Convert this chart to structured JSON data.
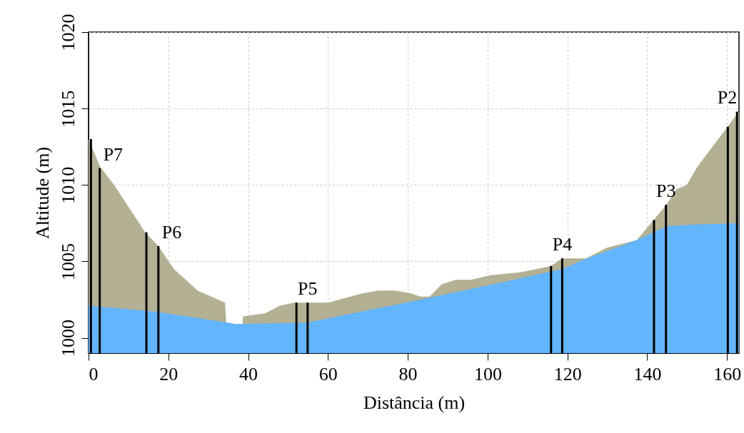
{
  "chart_data": {
    "type": "area",
    "xlabel": "Distância (m)",
    "ylabel": "Altitude (m)",
    "xlim": [
      0,
      163
    ],
    "ylim": [
      999,
      1020
    ],
    "xticks": [
      0,
      20,
      40,
      60,
      80,
      100,
      120,
      140,
      160
    ],
    "yticks": [
      1000,
      1005,
      1010,
      1015,
      1020
    ],
    "grid": true,
    "series": [
      {
        "color": "#b3b094",
        "x": [
          0,
          2.9,
          6.4,
          14.2,
          17.5,
          21.4,
          27.3,
          34.2,
          34.5,
          34.7,
          36.9,
          38.6,
          38.7,
          44.3,
          47.9,
          51.5,
          60.1,
          64.3,
          68.5,
          72.7,
          76.8,
          81.0,
          83.1,
          85.5,
          88.5,
          92.0,
          95.9,
          99.2,
          100.9,
          108.5,
          115.9,
          118.7,
          124.6,
          129.9,
          137.4,
          141.6,
          144.8,
          147.2,
          149.9,
          152.6,
          160.1,
          163
        ],
        "values": [
          1013.0,
          1011.2,
          1010.0,
          1006.9,
          1006.0,
          1004.5,
          1003.1,
          1002.3,
          1001.0,
          1001.0,
          1000.9,
          1000.9,
          1001.4,
          1001.6,
          1002.1,
          1002.3,
          1002.3,
          1002.6,
          1002.9,
          1003.1,
          1003.1,
          1002.9,
          1002.7,
          1002.7,
          1003.5,
          1003.8,
          1003.8,
          1004.0,
          1004.1,
          1004.3,
          1004.7,
          1005.2,
          1005.2,
          1005.9,
          1006.4,
          1007.7,
          1008.7,
          1009.7,
          1010.0,
          1011.2,
          1013.8,
          1014.8
        ]
      },
      {
        "color": "#63b5fd",
        "x": [
          0,
          17.2,
          34.7,
          36.9,
          54.8,
          79.6,
          103.1,
          118.7,
          124.0,
          137.4,
          144.8,
          150.8,
          163
        ],
        "values": [
          1002.1,
          1001.7,
          1001.0,
          1000.9,
          1001.0,
          1002.3,
          1003.6,
          1004.5,
          1005.1,
          1006.4,
          1007.3,
          1007.4,
          1007.5
        ]
      },
      {
        "type": "bar",
        "color": "#000000",
        "x": [
          0.6,
          2.8,
          14.5,
          17.5,
          52.1,
          54.9,
          115.9,
          118.7,
          141.7,
          144.7,
          160.2,
          162.5
        ],
        "values": [
          1013.0,
          1011.1,
          1006.9,
          1006.0,
          1002.3,
          1002.3,
          1004.7,
          1005.2,
          1007.7,
          1008.7,
          1013.8,
          1014.8
        ]
      }
    ],
    "annotations": [
      {
        "text": "P7",
        "x": 2.8,
        "y": 1011.1
      },
      {
        "text": "P6",
        "x": 17.5,
        "y": 1006.0
      },
      {
        "text": "P5",
        "x": 54.9,
        "y": 1002.3
      },
      {
        "text": "P4",
        "x": 118.7,
        "y": 1005.2
      },
      {
        "text": "P3",
        "x": 144.7,
        "y": 1008.7
      },
      {
        "text": "P2",
        "x": 162.5,
        "y": 1014.8
      }
    ]
  }
}
